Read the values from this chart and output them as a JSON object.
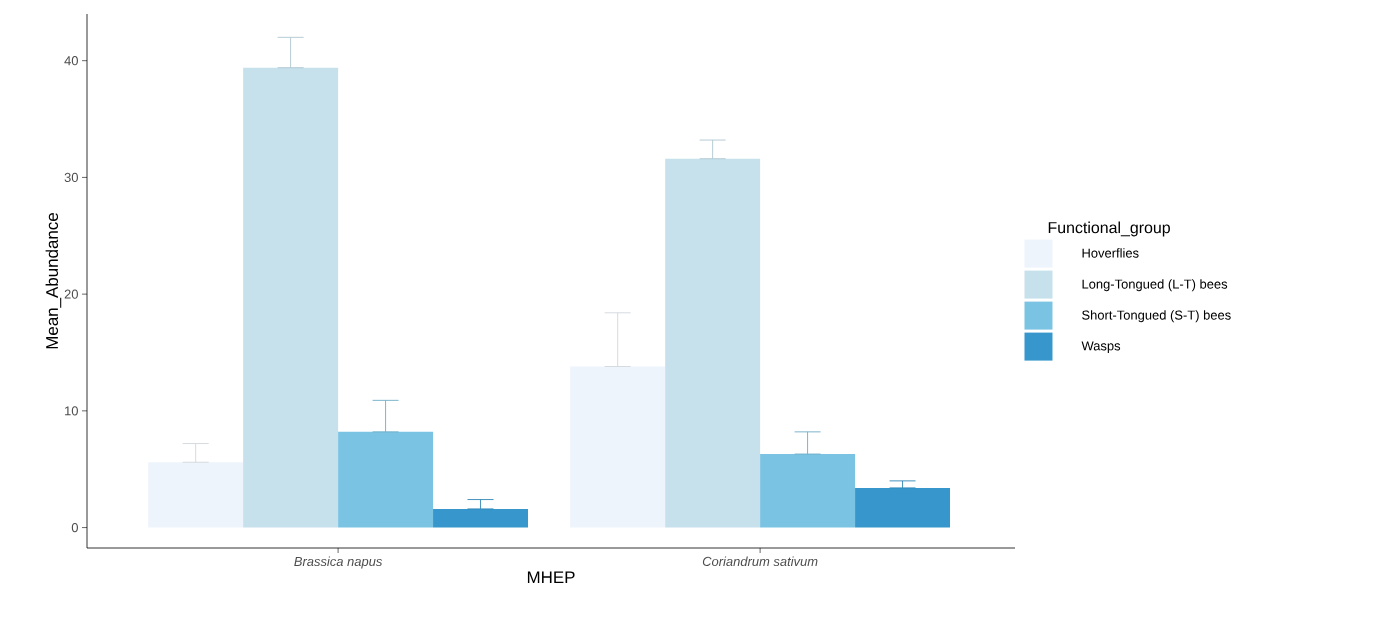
{
  "chart_data": {
    "type": "bar",
    "xlabel": "MHEP",
    "ylabel": "Mean_Abundance",
    "legend_title": "Functional_group",
    "categories": [
      "Brassica napus",
      "Coriandrum sativum"
    ],
    "series": [
      {
        "name": "Hoverflies",
        "color": "#eef4fc",
        "values": [
          5.6,
          13.8
        ],
        "errors": [
          [
            5.6,
            7.2
          ],
          [
            13.8,
            18.4
          ]
        ]
      },
      {
        "name": "Long-Tongued (L-T) bees",
        "color": "#c6e1ec",
        "values": [
          39.4,
          31.6
        ],
        "errors": [
          [
            39.4,
            42.0
          ],
          [
            31.6,
            33.2
          ]
        ]
      },
      {
        "name": "Short-Tongued (S-T) bees",
        "color": "#7bc3e2",
        "values": [
          8.2,
          6.3
        ],
        "errors": [
          [
            8.2,
            10.9
          ],
          [
            6.3,
            8.2
          ]
        ]
      },
      {
        "name": "Wasps",
        "color": "#3797cc",
        "values": [
          1.6,
          3.4
        ],
        "errors": [
          [
            1.6,
            2.4
          ],
          [
            3.4,
            4.0
          ]
        ]
      }
    ],
    "ylim": [
      -1.75,
      44
    ],
    "yticks": [
      0,
      10,
      20,
      30,
      40
    ],
    "legend": "right"
  }
}
